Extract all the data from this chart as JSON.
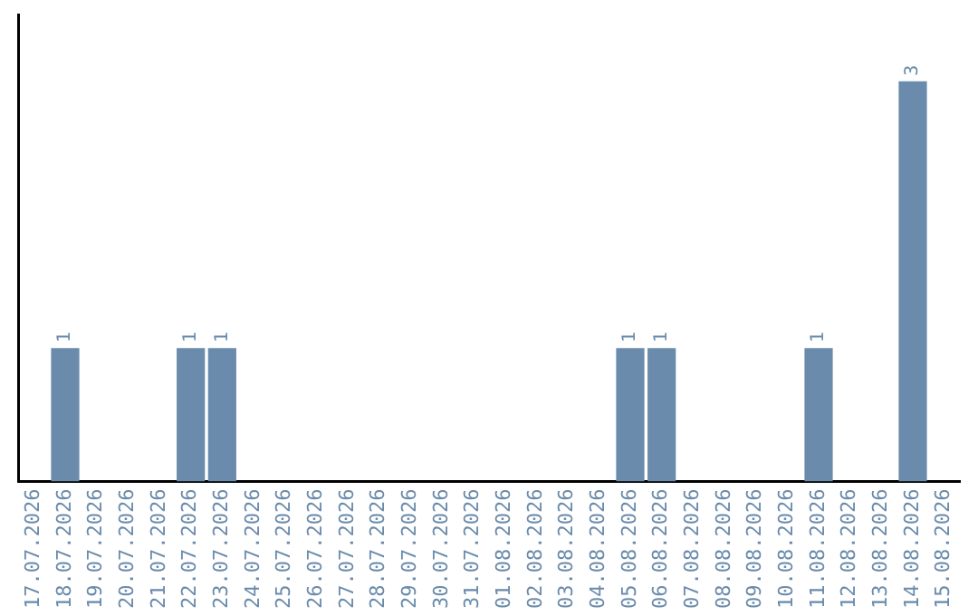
{
  "chart_data": {
    "type": "bar",
    "categories": [
      "17.07.2026",
      "18.07.2026",
      "19.07.2026",
      "20.07.2026",
      "21.07.2026",
      "22.07.2026",
      "23.07.2026",
      "24.07.2026",
      "25.07.2026",
      "26.07.2026",
      "27.07.2026",
      "28.07.2026",
      "29.07.2026",
      "30.07.2026",
      "31.07.2026",
      "01.08.2026",
      "02.08.2026",
      "03.08.2026",
      "04.08.2026",
      "05.08.2026",
      "06.08.2026",
      "07.08.2026",
      "08.08.2026",
      "09.08.2026",
      "10.08.2026",
      "11.08.2026",
      "12.08.2026",
      "13.08.2026",
      "14.08.2026",
      "15.08.2026"
    ],
    "values": [
      0,
      1,
      0,
      0,
      0,
      1,
      1,
      0,
      0,
      0,
      0,
      0,
      0,
      0,
      0,
      0,
      0,
      0,
      0,
      1,
      1,
      0,
      0,
      0,
      0,
      1,
      0,
      0,
      3,
      0
    ],
    "value_labels": [
      null,
      "1",
      null,
      null,
      null,
      "1",
      "1",
      null,
      null,
      null,
      null,
      null,
      null,
      null,
      null,
      null,
      null,
      null,
      null,
      "1",
      "1",
      null,
      null,
      null,
      null,
      "1",
      null,
      null,
      "3",
      null
    ],
    "color": "#6a8bab",
    "grid": false,
    "legend": false,
    "tick_labels": "x"
  }
}
